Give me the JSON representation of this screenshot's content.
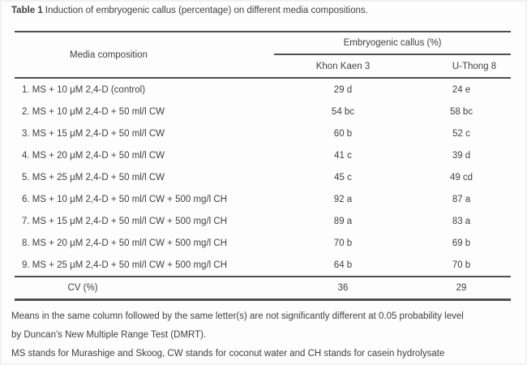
{
  "caption": {
    "label": "Table 1",
    "text": "Induction of embryogenic callus (percentage) on different media compositions."
  },
  "table": {
    "media_header": "Media composition",
    "spanner_header": "Embryogenic callus (%)",
    "sub_headers": [
      "Khon Kaen 3",
      "U-Thong 8"
    ],
    "rows": [
      {
        "media": "1. MS + 10 μM 2,4-D (control)",
        "kk3": "29 d",
        "ut8": "24 e"
      },
      {
        "media": "2. MS + 10 μM 2,4-D + 50 ml/l CW",
        "kk3": "54 bc",
        "ut8": "58 bc"
      },
      {
        "media": "3. MS + 15 μM 2,4-D + 50 ml/l CW",
        "kk3": "60 b",
        "ut8": "52 c"
      },
      {
        "media": "4. MS + 20 μM 2,4-D + 50 ml/l CW",
        "kk3": "41 c",
        "ut8": "39 d"
      },
      {
        "media": "5. MS + 25 μM 2,4-D + 50 ml/l CW",
        "kk3": "45 c",
        "ut8": "49 cd"
      },
      {
        "media": "6. MS + 10 μM 2,4-D + 50 ml/l CW + 500 mg/l CH",
        "kk3": "92 a",
        "ut8": "87 a"
      },
      {
        "media": "7. MS + 15 μM 2,4-D + 50 ml/l CW + 500 mg/l CH",
        "kk3": "89 a",
        "ut8": "83 a"
      },
      {
        "media": "8. MS + 20 μM 2,4-D + 50 ml/l CW + 500 mg/l CH",
        "kk3": "70 b",
        "ut8": "69 b"
      },
      {
        "media": "9. MS + 25 μM 2,4-D + 50 ml/l CW + 500 mg/l CH",
        "kk3": "64 b",
        "ut8": "70 b"
      }
    ],
    "cv_row": {
      "label": "CV (%)",
      "kk3": "36",
      "ut8": "29"
    }
  },
  "footnotes": [
    "Means in the same column followed by the same letter(s) are not significantly different at 0.05 probability level",
    "by Duncan's New Multiple Range Test (DMRT).",
    "MS stands for Murashige and Skoog, CW stands for coconut water and CH stands for casein hydrolysate"
  ],
  "colors": {
    "text": "#414141",
    "rule": "#4f4f4f",
    "background": "#fdfdfd"
  }
}
